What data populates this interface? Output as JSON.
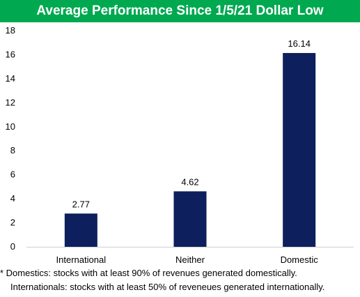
{
  "chart_data": {
    "type": "bar",
    "title": "Average Performance Since 1/5/21 Dollar Low",
    "categories": [
      "International",
      "Neither",
      "Domestic"
    ],
    "values": [
      2.77,
      4.62,
      16.14
    ],
    "data_labels": [
      "2.77",
      "4.62",
      "16.14"
    ],
    "ylim": [
      0,
      18
    ],
    "yticks": [
      0,
      2,
      4,
      6,
      8,
      10,
      12,
      14,
      16,
      18
    ],
    "xlabel": "",
    "ylabel": "",
    "grid": false,
    "legend": "none"
  },
  "footnotes": {
    "line1": "* Domestics: stocks with at least 90% of revenues generated domestically.",
    "line2": "Internationals: stocks with at least 50% of reveneues generated internationally."
  },
  "colors": {
    "title_bar": "#00a850",
    "bars": "#0d1f5c",
    "axis": "#d0d0d0"
  }
}
